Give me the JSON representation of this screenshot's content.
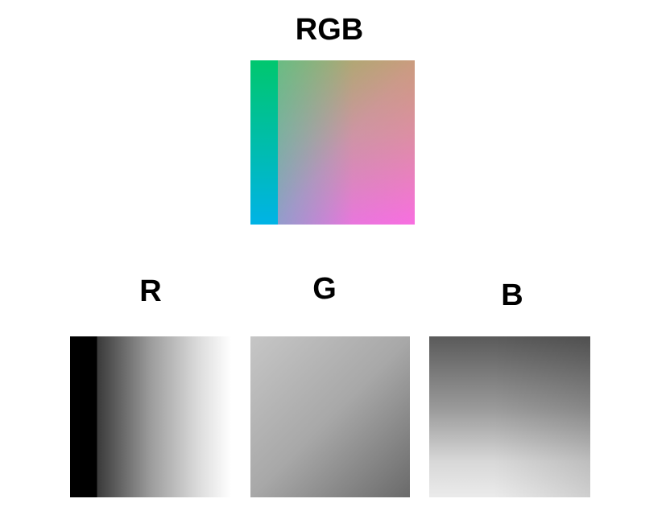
{
  "titles": {
    "rgb": "RGB",
    "r": "R",
    "g": "G",
    "b": "B"
  },
  "colors": {
    "background": "#ffffff",
    "text": "#000000",
    "rgb_top_left": "#00c76e",
    "rgb_bottom_left": "#00b3e6",
    "rgb_top_right": "#e69a56",
    "rgb_bottom_right": "#f86ee0"
  }
}
